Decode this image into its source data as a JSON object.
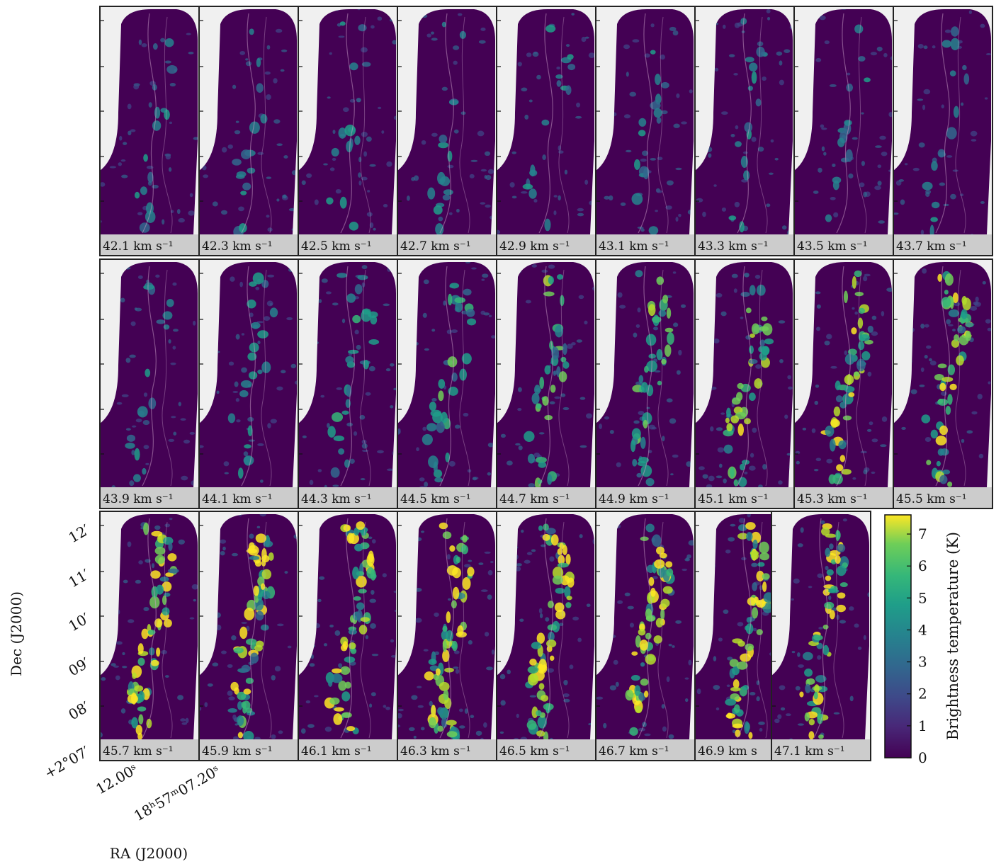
{
  "panels": [
    {
      "label": "42.1 km s⁻¹"
    },
    {
      "label": "42.3 km s⁻¹"
    },
    {
      "label": "42.5 km s⁻¹"
    },
    {
      "label": "42.7 km s⁻¹"
    },
    {
      "label": "42.9 km s⁻¹"
    },
    {
      "label": "43.1 km s⁻¹"
    },
    {
      "label": "43.3 km s⁻¹"
    },
    {
      "label": "43.5 km s⁻¹"
    },
    {
      "label": "43.7 km s⁻¹"
    },
    {
      "label": "43.9 km s⁻¹"
    },
    {
      "label": "44.1 km s⁻¹"
    },
    {
      "label": "44.3 km s⁻¹"
    },
    {
      "label": "44.5 km s⁻¹"
    },
    {
      "label": "44.7 km s⁻¹"
    },
    {
      "label": "44.9 km s⁻¹"
    },
    {
      "label": "45.1 km s⁻¹"
    },
    {
      "label": "45.3 km s⁻¹"
    },
    {
      "label": "45.5 km s⁻¹"
    },
    {
      "label": "45.7 km s⁻¹"
    },
    {
      "label": "45.9 km s⁻¹"
    },
    {
      "label": "46.1 km s⁻¹"
    },
    {
      "label": "46.3 km s⁻¹"
    },
    {
      "label": "46.5 km s⁻¹"
    },
    {
      "label": "46.7 km s⁻¹"
    },
    {
      "label": "46.9 km s"
    },
    {
      "label": "47.1 km s⁻¹"
    }
  ],
  "axes": {
    "y_label": "Dec (J2000)",
    "x_label": "RA (J2000)",
    "yticks": [
      "12′",
      "11′",
      "10′",
      "09′",
      "08′",
      "+2°07′"
    ],
    "xticks": [
      "12.00ˢ",
      "18ʰ57ᵐ07.20ˢ"
    ]
  },
  "colorbar": {
    "label": "Brightness temperature (K)",
    "lim": [
      0,
      7.6
    ],
    "ticks": [
      0,
      1,
      2,
      3,
      4,
      5,
      6,
      7
    ]
  }
}
